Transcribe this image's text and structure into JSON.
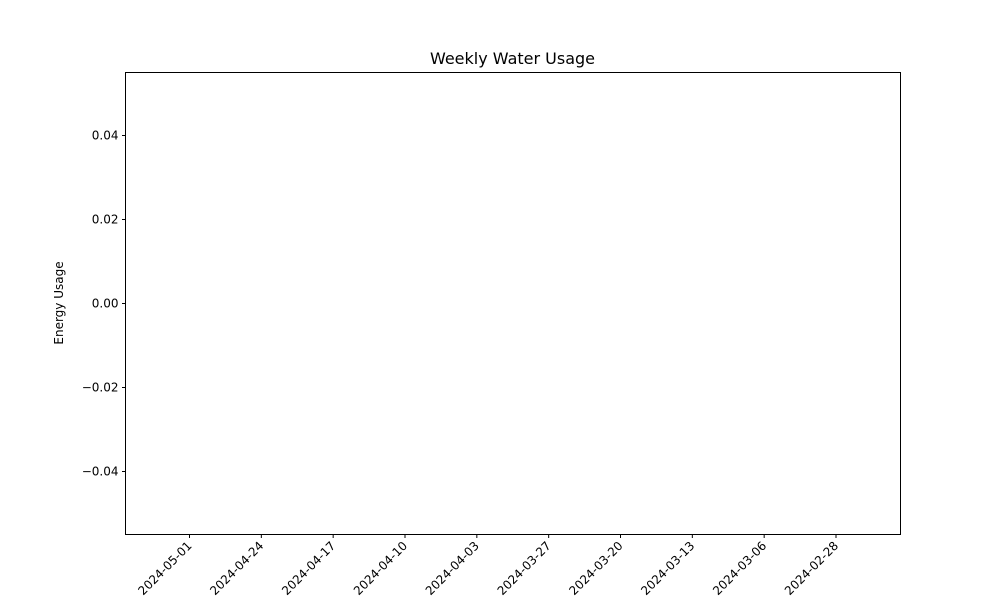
{
  "chart_data": {
    "type": "line",
    "title": "Weekly Water Usage",
    "xlabel": "",
    "ylabel": "Energy Usage",
    "x_ticks": [
      "2024-05-01",
      "2024-04-24",
      "2024-04-17",
      "2024-04-10",
      "2024-04-03",
      "2024-03-27",
      "2024-03-20",
      "2024-03-13",
      "2024-03-06",
      "2024-02-28"
    ],
    "y_ticks": [
      0.04,
      0.02,
      0.0,
      -0.02,
      -0.04
    ],
    "y_tick_labels": [
      "0.04",
      "0.02",
      "0.00",
      "−0.02",
      "−0.04"
    ],
    "ylim": [
      -0.055,
      0.055
    ],
    "series": [],
    "grid": false,
    "legend": "none"
  }
}
